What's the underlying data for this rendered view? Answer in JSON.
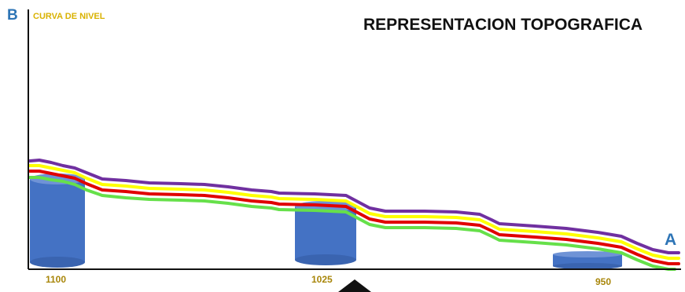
{
  "title": "REPRESENTACION TOPOGRAFICA",
  "curve_label": "CURVA DE NIVEL",
  "point_b": "B",
  "point_a": "A",
  "elevations": [
    "1100",
    "1025",
    "950"
  ],
  "colors": {
    "contour_purple": "#7030a0",
    "contour_yellow": "#ffff00",
    "contour_red": "#e00000",
    "contour_green": "#66e04a",
    "cylinder": "#4472c4",
    "label_blue": "#2e75b6",
    "label_gold": "#d9b200",
    "elevation_text": "#a8860a"
  }
}
